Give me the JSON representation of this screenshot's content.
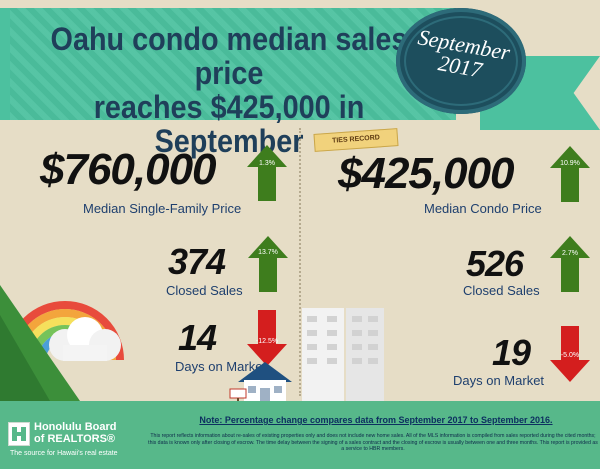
{
  "header": {
    "title_line1": "Oahu condo median sales price",
    "title_line2": "reaches $425,000 in September",
    "badge_month": "September",
    "badge_year": "2017"
  },
  "record_tag": "TIES RECORD",
  "single_family": {
    "median_price": "$760,000",
    "median_price_label": "Median Single-Family Price",
    "median_price_change": "1.3%",
    "median_price_direction": "up",
    "closed_sales": "374",
    "closed_sales_label": "Closed Sales",
    "closed_sales_change": "13.7%",
    "closed_sales_direction": "up",
    "days_on_market": "14",
    "days_on_market_label": "Days on Market",
    "days_on_market_change": "-12.5%",
    "days_on_market_direction": "down"
  },
  "condo": {
    "median_price": "$425,000",
    "median_price_label": "Median Condo Price",
    "median_price_change": "10.9%",
    "median_price_direction": "up",
    "closed_sales": "526",
    "closed_sales_label": "Closed Sales",
    "closed_sales_change": "2.7%",
    "closed_sales_direction": "up",
    "days_on_market": "19",
    "days_on_market_label": "Days on Market",
    "days_on_market_change": "-5.0%",
    "days_on_market_direction": "down"
  },
  "footer": {
    "note": "Note: Percentage change compares data from September 2017 to September 2016.",
    "disclaimer": "This report reflects information about re-sales of existing properties only and does not include new home sales. All of the MLS information is compiled from sales reported during the cited months; this data is known only after closing of escrow. The time delay between the signing of a sales contract and the closing of escrow is usually between one and three months. This report is provided as a service to HBR members.",
    "logo_line1": "Honolulu Board",
    "logo_line2": "of REALTORS®",
    "logo_tagline": "The source for Hawaii's real estate"
  },
  "colors": {
    "up_arrow": "#3e7d1d",
    "down_arrow": "#d41e1e",
    "banner": "#4cc19f",
    "title": "#1f3f5a",
    "badge": "#1d4e5d",
    "footer": "#57b88a"
  },
  "icons": [
    "rainbow-illustration",
    "cloud-illustration",
    "mountain-illustration",
    "house-illustration",
    "condo-building-illustration",
    "for-sale-sign-icon",
    "up-arrow-icon",
    "down-arrow-icon",
    "logo-icon"
  ]
}
